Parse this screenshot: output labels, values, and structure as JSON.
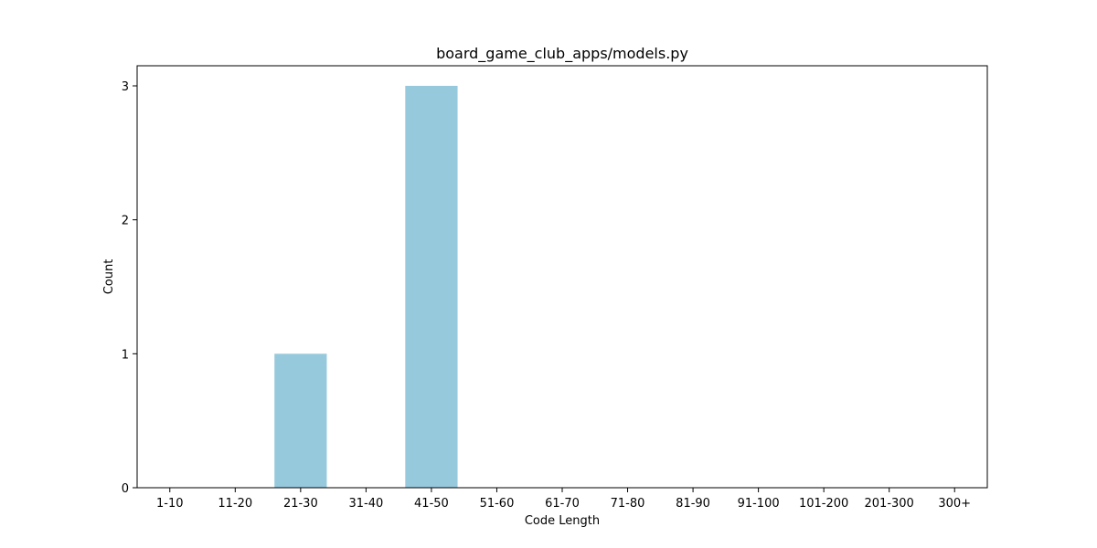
{
  "chart_data": {
    "type": "bar",
    "title": "board_game_club_apps/models.py",
    "xlabel": "Code Length",
    "ylabel": "Count",
    "categories": [
      "1-10",
      "11-20",
      "21-30",
      "31-40",
      "41-50",
      "51-60",
      "61-70",
      "71-80",
      "81-90",
      "91-100",
      "101-200",
      "201-300",
      "300+"
    ],
    "values": [
      0,
      0,
      1,
      0,
      3,
      0,
      0,
      0,
      0,
      0,
      0,
      0,
      0
    ],
    "yticks": [
      0,
      1,
      2,
      3
    ],
    "ylim": [
      0,
      3.15
    ],
    "grid": false,
    "legend": "none",
    "bar_color": "#96c9dc"
  }
}
